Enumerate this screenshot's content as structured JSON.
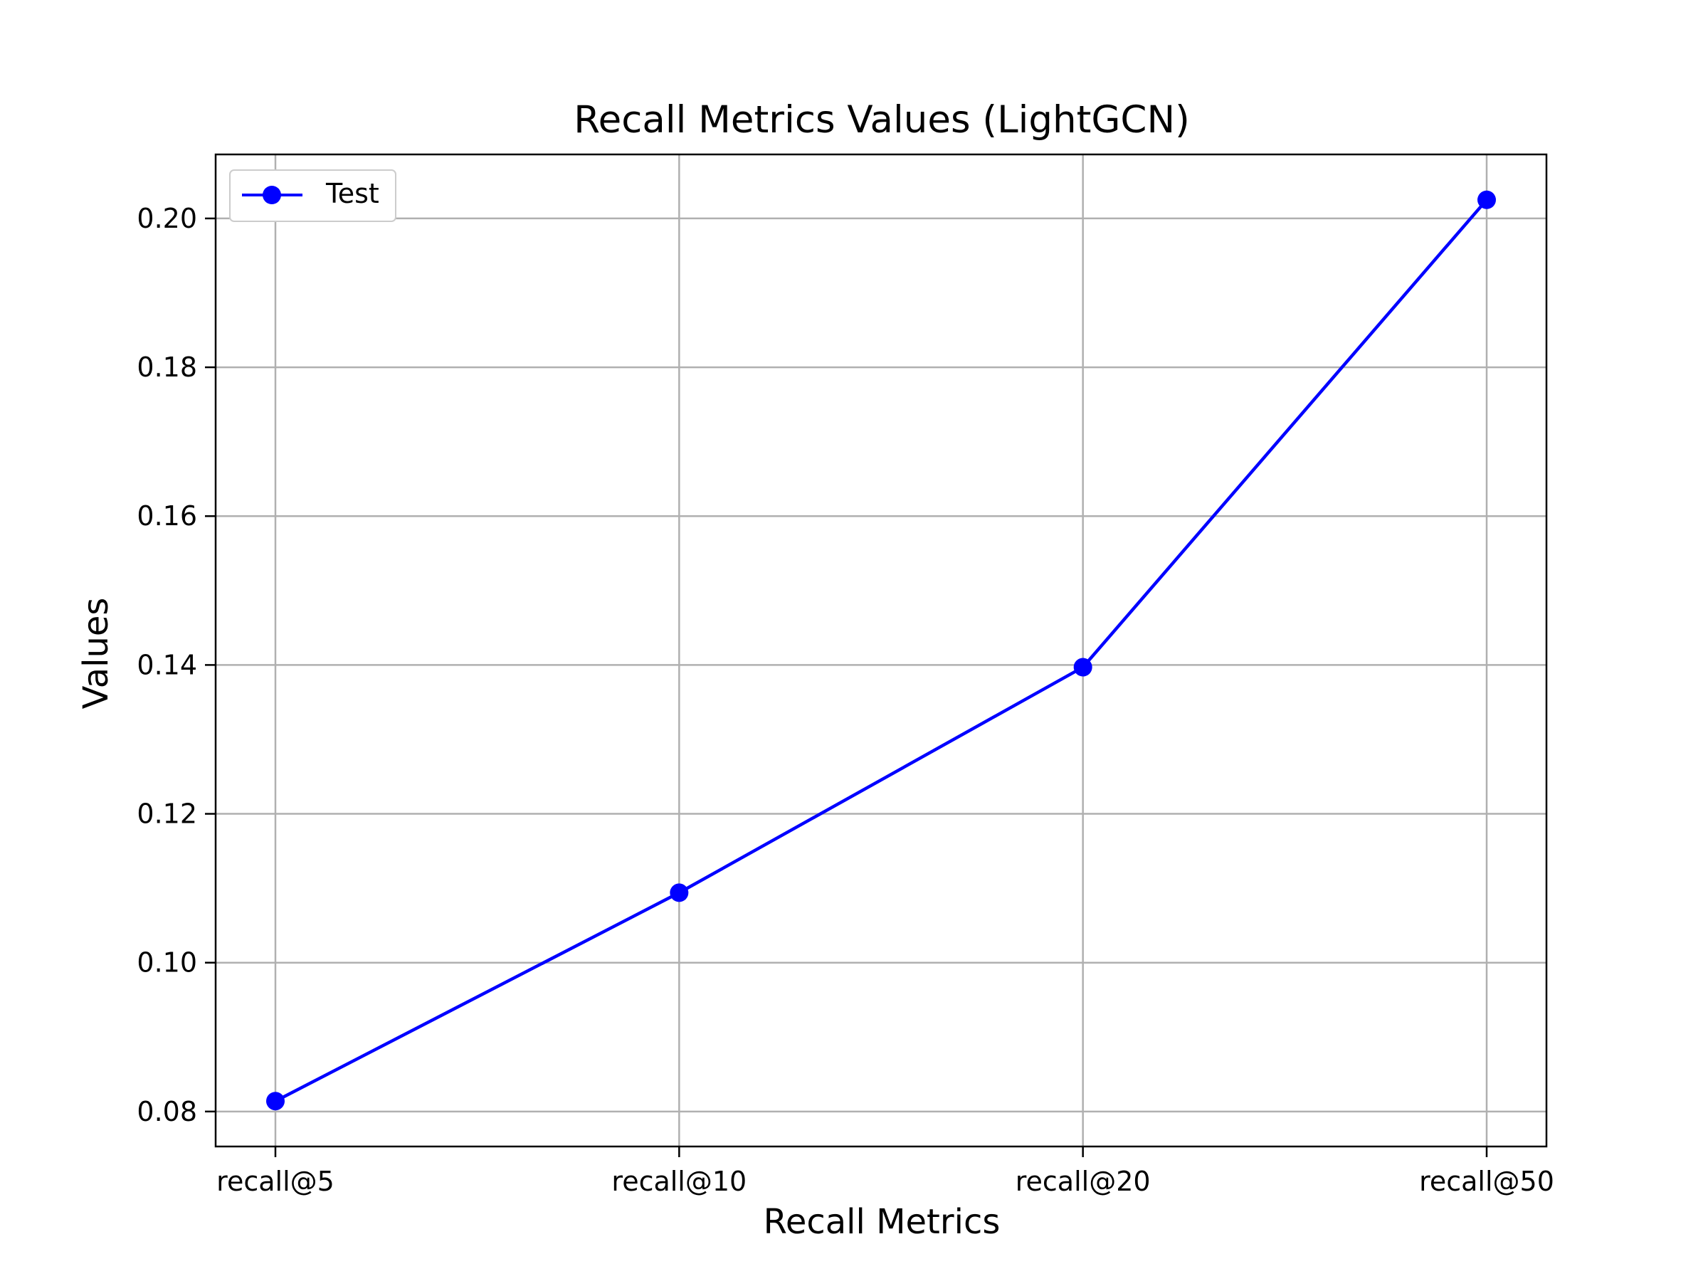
{
  "chart_data": {
    "type": "line",
    "title": "Recall Metrics Values (LightGCN)",
    "xlabel": "Recall Metrics",
    "ylabel": "Values",
    "categories": [
      "recall@5",
      "recall@10",
      "recall@20",
      "recall@50"
    ],
    "series": [
      {
        "name": "Test",
        "values": [
          0.0814,
          0.1094,
          0.1397,
          0.2025
        ],
        "color": "#0000ff",
        "marker": "circle"
      }
    ],
    "ylim": [
      0.0753,
      0.2086
    ],
    "yticks": [
      0.08,
      0.1,
      0.12,
      0.14,
      0.16,
      0.18,
      0.2
    ],
    "ytick_labels": [
      "0.08",
      "0.10",
      "0.12",
      "0.14",
      "0.16",
      "0.18",
      "0.20"
    ],
    "grid": true,
    "legend_position": "upper-left"
  }
}
